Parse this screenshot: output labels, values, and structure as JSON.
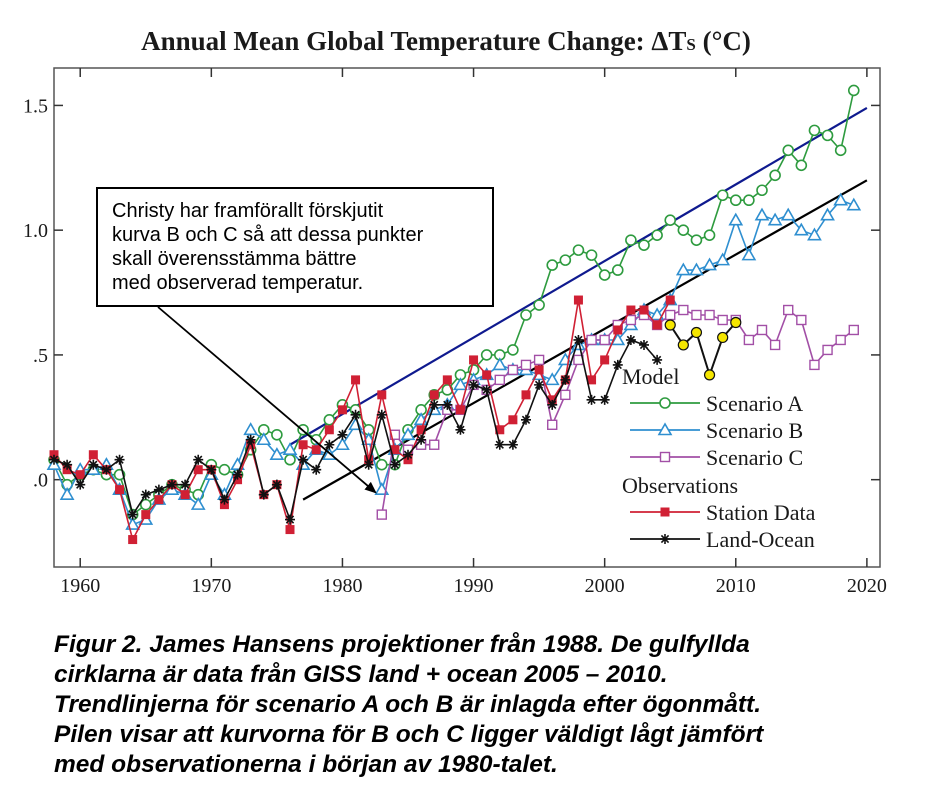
{
  "chart_data": {
    "type": "line",
    "title": "Annual Mean Global Temperature Change: ΔT",
    "title_subscript": "S",
    "title_unit": " (°C)",
    "xlim": [
      1958,
      2021
    ],
    "ylim": [
      -0.35,
      1.65
    ],
    "x_ticks": [
      1960,
      1970,
      1980,
      1990,
      2000,
      2010,
      2020
    ],
    "x_tick_labels": [
      "1960",
      "1970",
      "1980",
      "1990",
      "2000",
      "2010",
      "2020"
    ],
    "y_ticks": [
      0.0,
      0.5,
      1.0,
      1.5
    ],
    "y_tick_labels": [
      ".0",
      ".5",
      "1.0",
      "1.5"
    ],
    "grid": false,
    "legend": {
      "position": "bottom-right",
      "model_heading": "Model",
      "observations_heading": "Observations"
    },
    "series": [
      {
        "name": "Scenario A",
        "group": "model",
        "color": "#2e9b3f",
        "marker": "circle",
        "x": [
          1958,
          1959,
          1960,
          1961,
          1962,
          1963,
          1964,
          1965,
          1966,
          1967,
          1968,
          1969,
          1970,
          1971,
          1972,
          1973,
          1974,
          1975,
          1976,
          1977,
          1978,
          1979,
          1980,
          1981,
          1982,
          1983,
          1984,
          1985,
          1986,
          1987,
          1988,
          1989,
          1990,
          1991,
          1992,
          1993,
          1994,
          1995,
          1996,
          1997,
          1998,
          1999,
          2000,
          2001,
          2002,
          2003,
          2004,
          2005,
          2006,
          2007,
          2008,
          2009,
          2010,
          2011,
          2012,
          2013,
          2014,
          2015,
          2016,
          2017,
          2018,
          2019
        ],
        "values": [
          0.08,
          -0.02,
          0.02,
          0.04,
          0.02,
          0.02,
          -0.14,
          -0.1,
          -0.06,
          -0.02,
          -0.04,
          -0.06,
          0.06,
          0.04,
          0.02,
          0.12,
          0.2,
          0.18,
          0.08,
          0.2,
          0.16,
          0.24,
          0.3,
          0.28,
          0.2,
          0.06,
          0.06,
          0.2,
          0.28,
          0.34,
          0.36,
          0.42,
          0.44,
          0.5,
          0.5,
          0.52,
          0.66,
          0.7,
          0.86,
          0.88,
          0.92,
          0.9,
          0.82,
          0.84,
          0.96,
          0.94,
          0.98,
          1.04,
          1.0,
          0.96,
          0.98,
          1.14,
          1.12,
          1.12,
          1.16,
          1.22,
          1.32,
          1.26,
          1.4,
          1.38,
          1.32,
          1.56
        ]
      },
      {
        "name": "Scenario B",
        "group": "model",
        "color": "#2f8fd0",
        "marker": "triangle",
        "x": [
          1958,
          1959,
          1960,
          1961,
          1962,
          1963,
          1964,
          1965,
          1966,
          1967,
          1968,
          1969,
          1970,
          1971,
          1972,
          1973,
          1974,
          1975,
          1976,
          1977,
          1978,
          1979,
          1980,
          1981,
          1982,
          1983,
          1984,
          1985,
          1986,
          1987,
          1988,
          1989,
          1990,
          1991,
          1992,
          1993,
          1994,
          1995,
          1996,
          1997,
          1998,
          1999,
          2000,
          2001,
          2002,
          2003,
          2004,
          2005,
          2006,
          2007,
          2008,
          2009,
          2010,
          2011,
          2012,
          2013,
          2014,
          2015,
          2016,
          2017,
          2018,
          2019
        ],
        "values": [
          0.06,
          -0.06,
          0.04,
          0.04,
          0.06,
          -0.04,
          -0.18,
          -0.16,
          -0.08,
          -0.04,
          -0.06,
          -0.1,
          0.02,
          -0.06,
          0.06,
          0.2,
          0.16,
          0.1,
          0.12,
          0.06,
          0.12,
          0.1,
          0.14,
          0.22,
          0.16,
          -0.04,
          0.12,
          0.18,
          0.24,
          0.28,
          0.3,
          0.38,
          0.4,
          0.42,
          0.46,
          0.44,
          0.44,
          0.42,
          0.4,
          0.48,
          0.54,
          0.56,
          0.56,
          0.56,
          0.62,
          0.68,
          0.66,
          0.72,
          0.84,
          0.84,
          0.86,
          0.88,
          1.04,
          0.9,
          1.06,
          1.04,
          1.06,
          1.0,
          0.98,
          1.06,
          1.12,
          1.1
        ]
      },
      {
        "name": "Scenario C",
        "group": "model",
        "color": "#a24fa6",
        "marker": "square",
        "x": [
          1983,
          1984,
          1985,
          1986,
          1987,
          1988,
          1989,
          1990,
          1991,
          1992,
          1993,
          1994,
          1995,
          1996,
          1997,
          1998,
          1999,
          2000,
          2001,
          2002,
          2003,
          2004,
          2005,
          2006,
          2007,
          2008,
          2009,
          2010,
          2011,
          2012,
          2013,
          2014,
          2015,
          2016,
          2017,
          2018,
          2019
        ],
        "values": [
          -0.14,
          0.18,
          0.12,
          0.14,
          0.14,
          0.28,
          0.28,
          0.38,
          0.36,
          0.4,
          0.44,
          0.46,
          0.48,
          0.22,
          0.34,
          0.48,
          0.56,
          0.56,
          0.62,
          0.64,
          0.66,
          0.62,
          0.66,
          0.68,
          0.66,
          0.66,
          0.64,
          0.64,
          0.56,
          0.6,
          0.54,
          0.68,
          0.64,
          0.46,
          0.52,
          0.56,
          0.6
        ]
      },
      {
        "name": "Station Data",
        "group": "observations",
        "color": "#d02034",
        "marker": "filled-square",
        "x": [
          1958,
          1959,
          1960,
          1961,
          1962,
          1963,
          1964,
          1965,
          1966,
          1967,
          1968,
          1969,
          1970,
          1971,
          1972,
          1973,
          1974,
          1975,
          1976,
          1977,
          1978,
          1979,
          1980,
          1981,
          1982,
          1983,
          1984,
          1985,
          1986,
          1987,
          1988,
          1989,
          1990,
          1991,
          1992,
          1993,
          1994,
          1995,
          1996,
          1997,
          1998,
          1999,
          2000,
          2001,
          2002,
          2003,
          2004,
          2005
        ],
        "values": [
          0.1,
          0.04,
          0.02,
          0.1,
          0.04,
          -0.04,
          -0.24,
          -0.14,
          -0.08,
          -0.02,
          -0.06,
          0.04,
          0.04,
          -0.1,
          0.0,
          0.14,
          -0.06,
          -0.02,
          -0.2,
          0.14,
          0.12,
          0.2,
          0.28,
          0.4,
          0.08,
          0.34,
          0.12,
          0.08,
          0.2,
          0.34,
          0.4,
          0.28,
          0.48,
          0.42,
          0.2,
          0.24,
          0.34,
          0.44,
          0.32,
          0.4,
          0.72,
          0.4,
          0.48,
          0.6,
          0.68,
          0.68,
          0.62,
          0.72
        ]
      },
      {
        "name": "Land-Ocean",
        "group": "observations",
        "color": "#111111",
        "marker": "asterisk",
        "x": [
          1958,
          1959,
          1960,
          1961,
          1962,
          1963,
          1964,
          1965,
          1966,
          1967,
          1968,
          1969,
          1970,
          1971,
          1972,
          1973,
          1974,
          1975,
          1976,
          1977,
          1978,
          1979,
          1980,
          1981,
          1982,
          1983,
          1984,
          1985,
          1986,
          1987,
          1988,
          1989,
          1990,
          1991,
          1992,
          1993,
          1994,
          1995,
          1996,
          1997,
          1998,
          1999,
          2000,
          2001,
          2002,
          2003,
          2004
        ],
        "values": [
          0.08,
          0.06,
          -0.02,
          0.06,
          0.04,
          0.08,
          -0.14,
          -0.06,
          -0.04,
          -0.02,
          -0.02,
          0.08,
          0.04,
          -0.08,
          0.02,
          0.16,
          -0.06,
          -0.02,
          -0.16,
          0.08,
          0.04,
          0.14,
          0.18,
          0.26,
          0.06,
          0.26,
          0.06,
          0.1,
          0.16,
          0.3,
          0.3,
          0.2,
          0.38,
          0.36,
          0.14,
          0.14,
          0.24,
          0.38,
          0.3,
          0.4,
          0.56,
          0.32,
          0.32,
          0.46,
          0.56,
          0.54,
          0.48
        ]
      },
      {
        "name": "",
        "group": "observations",
        "color": "#f5e600",
        "marker": "yellow-circle",
        "x": [
          2005,
          2006,
          2007,
          2008,
          2009,
          2010
        ],
        "values": [
          0.62,
          0.54,
          0.59,
          0.42,
          0.57,
          0.63
        ]
      }
    ],
    "trend_lines": [
      {
        "label": "Scenario A trend",
        "color": "#0f1a8f",
        "from": [
          1976,
          0.14
        ],
        "to": [
          2020,
          1.49
        ]
      },
      {
        "label": "Scenario B trend",
        "color": "#000000",
        "from": [
          1977,
          -0.08
        ],
        "to": [
          2020,
          1.2
        ]
      }
    ],
    "annotation": {
      "lines": [
        "Christy har framförallt förskjutit",
        "kurva B och C så att dessa punkter",
        "skall överensstämma bättre",
        "med observerad temperatur."
      ],
      "arrow_target": [
        1982.5,
        -0.05
      ]
    }
  },
  "caption": {
    "lines": [
      "Figur 2. James Hansens projektioner från 1988. De gulfyllda",
      "cirklarna är data från GISS land + ocean 2005 – 2010.",
      "Trendlinjerna för scenario A och B är inlagda efter ögonmått.",
      "Pilen visar att kurvorna för B och C ligger väldigt lågt jämfört",
      "med observationerna i början av 1980-talet."
    ]
  }
}
